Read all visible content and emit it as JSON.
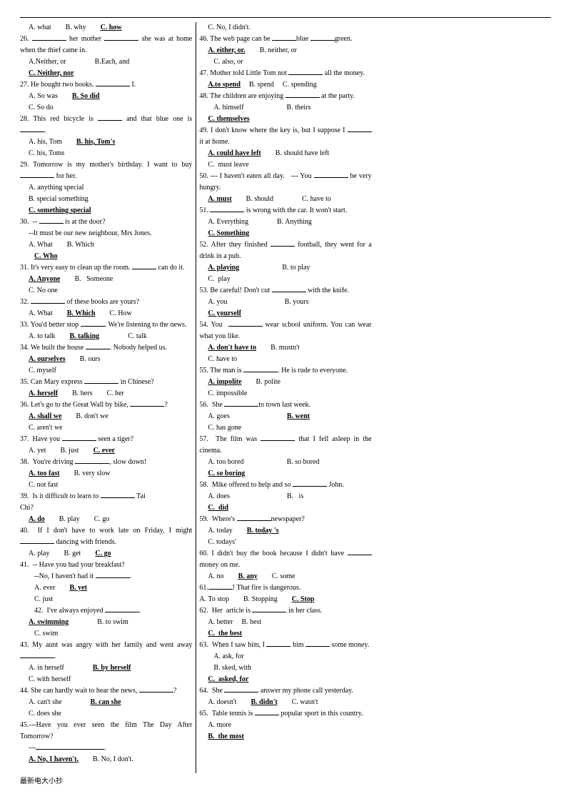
{
  "footer": "最新电大小抄",
  "col1": [
    {
      "cls": "ind",
      "html": "A. what<span class='gap2'></span>B. why<span class='gap2'></span><span class='ans'>C. how</span>"
    },
    {
      "cls": "",
      "html": "26. <span class='blankw'></span> her mother <span class='blankw'></span> she was at home when the thief came in."
    },
    {
      "cls": "ind",
      "html": "A.Neither, or<span class='gap2'></span><span class='gap2'></span>B.Each, and"
    },
    {
      "cls": "ind",
      "html": "<span class='ans'>C. Neither, nor</span>"
    },
    {
      "cls": "",
      "html": "27. He bought two books. <span class='blankw'></span> I."
    },
    {
      "cls": "ind",
      "html": "A. So was<span class='gap2'></span><span class='ans'>B. So did</span>"
    },
    {
      "cls": "ind",
      "html": "C. So do"
    },
    {
      "cls": "",
      "html": "28. This red bicycle is <span class='blank'></span> and that blue one is <span class='blank'></span>."
    },
    {
      "cls": "ind",
      "html": "A. his, Tom<span class='gap2'></span><span class='ans'>B. his, Tom's</span>"
    },
    {
      "cls": "ind",
      "html": "C. his, Toms"
    },
    {
      "cls": "",
      "html": "29. Tomorrow is my mother's birthday. I want to buy <span class='blankw'></span> for her."
    },
    {
      "cls": "ind",
      "html": "A. anything special"
    },
    {
      "cls": "ind",
      "html": "B. special something"
    },
    {
      "cls": "ind",
      "html": "<span class='ans'>C. something special</span>"
    },
    {
      "cls": "",
      "html": "30. &nbsp;-- <span class='blank'></span> is at the door?"
    },
    {
      "cls": "ind",
      "html": "--It must be our new neighbour, Mrs Jones."
    },
    {
      "cls": "ind",
      "html": "A. What<span class='gap2'></span>B. Which"
    },
    {
      "cls": "ind2",
      "html": "<span class='ans'>C. Who</span>"
    },
    {
      "cls": "",
      "html": "31. It's very easy to clean up the room. <span class='blank'></span> can do it."
    },
    {
      "cls": "ind",
      "html": "<span class='ans'>A. Anyone</span><span class='gap2'></span>B. &nbsp;&nbsp;Someone"
    },
    {
      "cls": "ind",
      "html": "C. No one"
    },
    {
      "cls": "",
      "html": "32. <span class='blankw'></span> of these books are yours?"
    },
    {
      "cls": "ind",
      "html": "A. What<span class='gap2'></span><span class='ans'>B. Which</span><span class='gap2'></span>C. How"
    },
    {
      "cls": "",
      "html": "33. You'd better stop <span class='blank'></span>. We're listening to the news."
    },
    {
      "cls": "ind",
      "html": "A. to talk<span class='gap2'></span><span class='ans'>B. talking</span><span class='gap2'></span><span class='gap2'></span>C. talk"
    },
    {
      "cls": "",
      "html": "34. We built the house <span class='blank'></span>. Nobody helped us."
    },
    {
      "cls": "ind",
      "html": "<span class='ans'>A. ourselves</span><span class='gap2'></span>B. ours"
    },
    {
      "cls": "ind",
      "html": "C. myself"
    },
    {
      "cls": "",
      "html": "35. Can Mary express <span class='blankw'></span> in Chinese?"
    },
    {
      "cls": "ind",
      "html": "<span class='ans'>A. herself</span><span class='gap2'></span>B. hers<span class='gap2'></span>C. her"
    },
    {
      "cls": "",
      "html": "36. Let's go to the Great Wall by bike, <span class='blankw'></span>?"
    },
    {
      "cls": "ind",
      "html": "<span class='ans'>A. shall we</span><span class='gap2'></span>B. don't we"
    },
    {
      "cls": "ind",
      "html": "C. aren't we"
    },
    {
      "cls": "",
      "html": "37. &nbsp;Have you <span class='blankw'></span> seen a tiger?"
    },
    {
      "cls": "ind",
      "html": "A. yet<span class='gap2'></span>B. just<span class='gap2'></span><span class='ans'>C. ever</span>"
    },
    {
      "cls": "",
      "html": "38. &nbsp;You're driving <span class='blankw'></span>, slow down!"
    },
    {
      "cls": "ind",
      "html": "<span class='ans'>A. too fast</span><span class='gap2'></span>B. very slow"
    },
    {
      "cls": "ind",
      "html": "C. not fast"
    },
    {
      "cls": "",
      "html": "39. &nbsp;Is it difficult to learn to <span class='blankw'></span> Tai"
    }
  ],
  "col2": [
    {
      "cls": "",
      "html": "Chi?"
    },
    {
      "cls": "ind",
      "html": "<span class='ans'>A. do</span><span class='gap2'></span>B. play<span class='gap2'></span>C. go"
    },
    {
      "cls": "",
      "html": "40. &nbsp;If I don't have to work late on Friday, I might <span class='blankw'></span> dancing with friends."
    },
    {
      "cls": "ind",
      "html": "A. play<span class='gap2'></span>B. get<span class='gap2'></span><span class='ans'>C. go</span>"
    },
    {
      "cls": "",
      "html": "41. &nbsp;-- Have you had your breakfast?"
    },
    {
      "cls": "ind2",
      "html": "--No, I haven't had it <span class='blankw'></span>."
    },
    {
      "cls": "ind2",
      "html": "A. ever<span class='gap2'></span><span class='ans'>B. yet</span>"
    },
    {
      "cls": "ind2",
      "html": "C. just"
    },
    {
      "cls": "ind2",
      "html": "42. &nbsp;I've always enjoyed <span class='blankw'></span>."
    },
    {
      "cls": "ind",
      "html": "<span class='ans'>A. swimming</span><span class='gap2'></span><span class='gap2'></span>B. to swim"
    },
    {
      "cls": "ind2",
      "html": "C. swim"
    },
    {
      "cls": "",
      "html": "43. My aunt was angry with her family and went away <span class='blankw'></span>."
    },
    {
      "cls": "ind",
      "html": "A. in herself<span class='gap2'></span><span class='gap2'></span><span class='ans'>B. by herself</span>"
    },
    {
      "cls": "ind",
      "html": "C. with herself"
    },
    {
      "cls": "",
      "html": "44. She can hardly wait to hear the news, <span class='blankw'></span>?"
    },
    {
      "cls": "ind",
      "html": "A. can't she<span class='gap2'></span><span class='gap2'></span><span class='ans'>B. can she</span>"
    },
    {
      "cls": "ind",
      "html": "C. does she"
    },
    {
      "cls": "",
      "html": "45.---Have you ever seen the film The Day After Tomorrow?"
    },
    {
      "cls": "ind",
      "html": "---<span class='blankw'></span><span class='blankw'></span>."
    },
    {
      "cls": "ind",
      "html": "<span class='ans'>A. No, I haven't.</span><span class='gap2'></span>B. No, I don't."
    },
    {
      "cls": "ind",
      "html": "C. No, I didn't."
    },
    {
      "cls": "",
      "html": "46. The web page can be <span class='blank'></span>blue <span class='blank'></span>green."
    },
    {
      "cls": "ind",
      "html": "<span class='ans'>A. either, or.</span><span class='gap2'></span>B. neither, or"
    },
    {
      "cls": "ind2",
      "html": "C. also, or"
    },
    {
      "cls": "",
      "html": "47. Mother told Little Tom not <span class='blankw'></span> all the money."
    },
    {
      "cls": "ind",
      "html": "<span class='ans'>A.to spend</span><span class='gap'></span>B. spend<span class='gap'></span>C. spending"
    },
    {
      "cls": "",
      "html": "48. The children are enjoying <span class='blankw'></span> at the party."
    },
    {
      "cls": "ind2",
      "html": "A. himself<span class='gap2'></span><span class='gap2'></span><span class='gap2'></span>B. theirs"
    },
    {
      "cls": "ind",
      "html": "<span class='ans'>C. themselves</span>"
    },
    {
      "cls": "",
      "html": "49. I don't know where the key is, but I suppose I <span class='blank'></span> it at home."
    },
    {
      "cls": "ind",
      "html": "<span class='ans'>A. could have left</span><span class='gap2'></span>B. should have left"
    },
    {
      "cls": "ind",
      "html": "C. &nbsp;must leave"
    },
    {
      "cls": "",
      "html": "50. --- I haven't eaten all day. &nbsp;&nbsp;--- You <span class='blankw'></span> be very hungry."
    },
    {
      "cls": "ind",
      "html": "<span class='ans'>A. must</span><span class='gap2'></span>B. should<span class='gap2'></span><span class='gap2'></span>C. have to"
    },
    {
      "cls": "",
      "html": "51. <span class='blankw'></span> is wrong with the car. It won't start."
    },
    {
      "cls": "ind",
      "html": "A. Everything<span class='gap2'></span><span class='gap2'></span>B. Anything"
    },
    {
      "cls": "ind",
      "html": "<span class='ans'>C. Something</span>"
    },
    {
      "cls": "",
      "html": "52. After they finished <span class='blank'></span> football, they went for a drink in a pub."
    }
  ],
  "col3": [
    {
      "cls": "ind",
      "html": "<span class='ans'>A. playing</span><span class='gap2'></span><span class='gap2'></span><span class='gap2'></span>B. to play"
    },
    {
      "cls": "ind",
      "html": "C. &nbsp;play"
    },
    {
      "cls": "",
      "html": "53. Be careful! Don't cut <span class='blankw'></span> with the knife."
    },
    {
      "cls": "ind",
      "html": "A. you<span class='gap2'></span><span class='gap2'></span><span class='gap2'></span><span class='gap2'></span>B. yours"
    },
    {
      "cls": "ind",
      "html": "<span class='ans'>C. yourself</span>"
    },
    {
      "cls": "",
      "html": "54. You &nbsp;<span class='blankw'></span> wear school uniform. You can wear what you like."
    },
    {
      "cls": "ind",
      "html": "<span class='ans'>A. don't have to</span><span class='gap2'></span>B. mustn't"
    },
    {
      "cls": "ind",
      "html": "C. have to"
    },
    {
      "cls": "",
      "html": "55. The man is <span class='blankw'></span>. He is rude to everyone."
    },
    {
      "cls": "ind",
      "html": "<span class='ans'>A. impolite</span><span class='gap2'></span>B. polite"
    },
    {
      "cls": "ind",
      "html": "C. impossible"
    },
    {
      "cls": "",
      "html": "56. &nbsp;She <span class='blankw'></span>to town last week."
    },
    {
      "cls": "ind",
      "html": "A. goes<span class='gap2'></span><span class='gap2'></span><span class='gap2'></span><span class='gap2'></span><span class='ans'>B. went</span>"
    },
    {
      "cls": "ind",
      "html": "C. has gone"
    },
    {
      "cls": "",
      "html": "57. &nbsp;The film was <span class='blankw'></span> that I fell asleep in the cinema."
    },
    {
      "cls": "ind",
      "html": "A. too bored<span class='gap2'></span><span class='gap2'></span><span class='gap2'></span>B. so bored"
    },
    {
      "cls": "ind",
      "html": "<span class='ans'>C. so boring</span>"
    },
    {
      "cls": "",
      "html": "58. &nbsp;Mike offered to help and so <span class='blankw'></span> John."
    },
    {
      "cls": "ind",
      "html": "A. does<span class='gap2'></span><span class='gap2'></span><span class='gap2'></span><span class='gap2'></span>B. &nbsp;&nbsp;is"
    },
    {
      "cls": "ind",
      "html": "<span class='ans'>C. &nbsp;did</span>"
    },
    {
      "cls": "",
      "html": "59. &nbsp;Where's <span class='blankw'></span>newspaper?"
    },
    {
      "cls": "ind",
      "html": "A. today<span class='gap2'></span><span class='ans'>B. today 's</span>"
    },
    {
      "cls": "ind",
      "html": "C. todays'"
    },
    {
      "cls": "",
      "html": "60. I didn't buy the book because I didn't have <span class='blank'></span> money on me."
    },
    {
      "cls": "ind",
      "html": "A. no<span class='gap2'></span><span class='ans'>B. any</span><span class='gap2'></span>C. some"
    },
    {
      "cls": "",
      "html": "61.<span class='blank'></span>! That fire is dangerous."
    },
    {
      "cls": "",
      "html": "A. To stop<span class='gap2'></span>B. Stopping<span class='gap2'></span><span class='ans'>C. Stop</span>"
    },
    {
      "cls": "",
      "html": "62. &nbsp;Her &nbsp;article is <span class='blankw'></span> in her class."
    },
    {
      "cls": "ind",
      "html": "A. better<span class='gap'></span>B. best"
    },
    {
      "cls": "ind",
      "html": "<span class='ans'>C. &nbsp;the best</span>"
    },
    {
      "cls": "",
      "html": "63. &nbsp;When I saw him, I <span class='blank'></span> him <span class='blank'></span> some money."
    },
    {
      "cls": "ind2",
      "html": "A. ask, for"
    },
    {
      "cls": "ind2",
      "html": "B. sked, with"
    },
    {
      "cls": "ind",
      "html": "<span class='ans'>C. &nbsp;asked, for</span>"
    },
    {
      "cls": "",
      "html": "64. &nbsp;She <span class='blankw'></span> answer my phone call yesterday."
    },
    {
      "cls": "ind",
      "html": "A. doesn't<span class='gap2'></span><span class='ans'>B. didn't</span><span class='gap2'></span>C. wasn't"
    },
    {
      "cls": "",
      "html": "65. &nbsp;Table tennis is <span class='blank'></span> popular sport in this country."
    },
    {
      "cls": "ind",
      "html": "A. more"
    },
    {
      "cls": "ind",
      "html": "<span class='ans'>B. &nbsp;the most</span>"
    }
  ]
}
